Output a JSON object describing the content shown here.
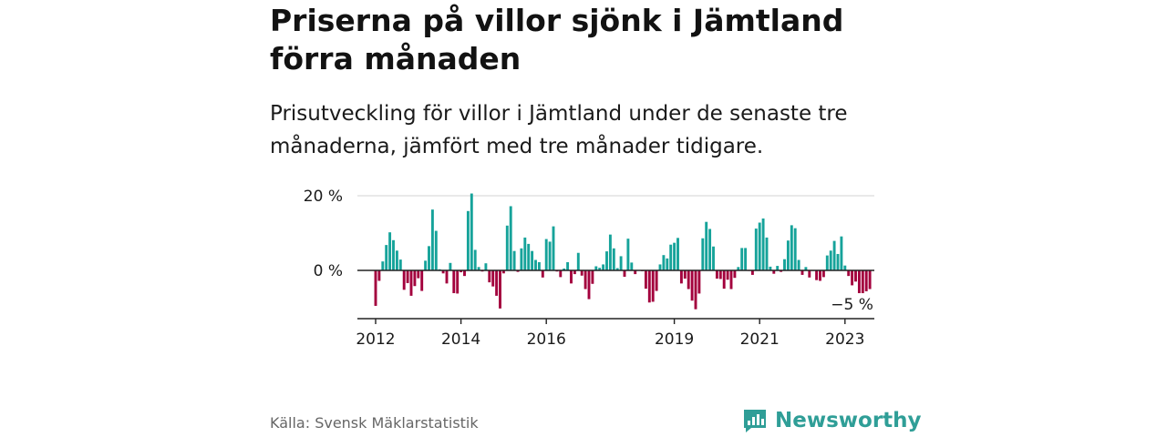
{
  "title": "Priserna på villor sjönk i Jämtland förra månaden",
  "subtitle": "Prisutveckling för villor i Jämtland under de senaste tre månaderna, jämfört med tre månader tidigare.",
  "source": "Källa: Svensk Mäklarstatistik",
  "brand": {
    "name": "Newsworthy",
    "icon": "newsworthy-logo-icon"
  },
  "colors": {
    "positive": "#16a39a",
    "negative": "#a3003d",
    "grid": "#dcdcdc",
    "axis": "#222222",
    "brand": "#2f9e97"
  },
  "chart_data": {
    "type": "bar",
    "ylim": [
      -12,
      22
    ],
    "yticks": [
      {
        "value": 0,
        "label": "0 %"
      },
      {
        "value": 20,
        "label": "20 %"
      }
    ],
    "xticks": [
      {
        "value": "2012-01",
        "label": "2012"
      },
      {
        "value": "2014-01",
        "label": "2014"
      },
      {
        "value": "2016-01",
        "label": "2016"
      },
      {
        "value": "2019-01",
        "label": "2019"
      },
      {
        "value": "2021-01",
        "label": "2021"
      },
      {
        "value": "2023-01",
        "label": "2023"
      }
    ],
    "annotation": {
      "x": "2023-03",
      "label": "−5 %"
    },
    "start": "2012-01",
    "values": [
      -9.5,
      -2.8,
      2.4,
      6.8,
      10.2,
      8.1,
      5.3,
      2.9,
      -5.2,
      -3.4,
      -6.8,
      -4.2,
      -2.1,
      -5.5,
      2.6,
      6.5,
      16.3,
      10.6,
      0.3,
      -0.8,
      -3.5,
      2.0,
      -6.1,
      -6.2,
      -0.5,
      -1.5,
      15.9,
      20.6,
      5.5,
      0.9,
      -0.3,
      1.9,
      -3.2,
      -4.3,
      -6.8,
      -10.2,
      -0.8,
      12.0,
      17.2,
      5.2,
      -0.4,
      5.9,
      8.8,
      7.1,
      5.2,
      2.8,
      2.2,
      -1.9,
      8.4,
      7.7,
      11.8,
      -0.3,
      -1.8,
      0.5,
      2.2,
      -3.5,
      -1.0,
      4.7,
      -1.4,
      -5.0,
      -7.7,
      -3.6,
      1.1,
      0.7,
      1.6,
      5.1,
      9.6,
      5.9,
      0.6,
      3.8,
      -1.7,
      8.5,
      2.1,
      -1.0,
      0.1,
      -0.2,
      -4.9,
      -8.6,
      -8.4,
      -5.5,
      1.6,
      4.1,
      3.2,
      6.9,
      7.4,
      8.7,
      -3.5,
      -2.2,
      -5.0,
      -8.1,
      -10.4,
      -6.2,
      8.6,
      13.0,
      11.1,
      6.4,
      -2.2,
      -2.3,
      -4.9,
      -2.5,
      -5.0,
      -2.0,
      0.9,
      6.0,
      6.0,
      -0.1,
      -1.2,
      11.2,
      12.8,
      13.9,
      8.8,
      1.0,
      -0.9,
      1.2,
      -0.4,
      3.0,
      8.0,
      12.1,
      11.3,
      2.8,
      -1.2,
      0.9,
      -1.9,
      -0.1,
      -2.6,
      -2.8,
      -1.8,
      4.0,
      5.3,
      7.9,
      4.4,
      9.1,
      1.3,
      -1.5,
      -4.0,
      -3.0,
      -6.1,
      -6.1,
      -5.6,
      -5.0
    ]
  }
}
